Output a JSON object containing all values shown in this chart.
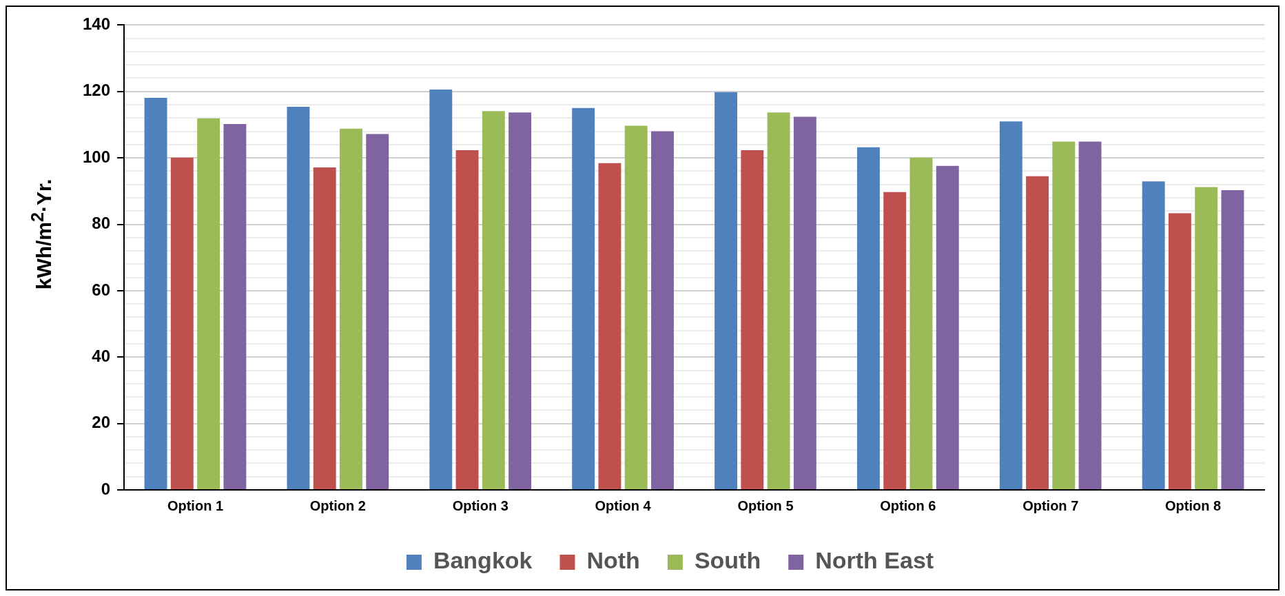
{
  "chart_data": {
    "type": "bar",
    "ylabel": "kWh/m$^{2}$·Yr.",
    "categories": [
      "Option 1",
      "Option 2",
      "Option 3",
      "Option 4",
      "Option 5",
      "Option 6",
      "Option 7",
      "Option 8"
    ],
    "series": [
      {
        "name": "Bangkok",
        "color": "#4f81bd",
        "values": [
          118.1,
          115.4,
          120.6,
          115.0,
          119.8,
          103.2,
          111.0,
          92.9
        ]
      },
      {
        "name": "Noth",
        "color": "#c0504d",
        "values": [
          100.1,
          97.1,
          102.3,
          98.4,
          102.3,
          89.7,
          94.5,
          83.3
        ]
      },
      {
        "name": "South",
        "color": "#9bbb59",
        "values": [
          111.9,
          108.8,
          114.1,
          109.7,
          113.7,
          100.1,
          104.9,
          91.2
        ]
      },
      {
        "name": "North East",
        "color": "#8064a2",
        "values": [
          110.2,
          107.2,
          113.7,
          108.0,
          112.4,
          97.6,
          104.9,
          90.3
        ]
      }
    ],
    "ylim": [
      0,
      140
    ],
    "yticks": [
      0,
      {
        "value": 4,
        "label": null
      },
      {
        "value": 8,
        "label": null
      },
      {
        "value": 12,
        "label": null
      },
      {
        "value": 16,
        "label": null
      },
      20,
      {
        "value": 24,
        "label": null
      },
      {
        "value": 28,
        "label": null
      },
      {
        "value": 32,
        "label": null
      },
      {
        "value": 36,
        "label": null
      },
      40,
      {
        "value": 44,
        "label": null
      },
      {
        "value": 48,
        "label": null
      },
      {
        "value": 52,
        "label": null
      },
      {
        "value": 56,
        "label": null
      },
      60,
      {
        "value": 64,
        "label": null
      },
      {
        "value": 68,
        "label": null
      },
      {
        "value": 72,
        "label": null
      },
      {
        "value": 76,
        "label": null
      },
      80,
      {
        "value": 84,
        "label": null
      },
      {
        "value": 88,
        "label": null
      },
      {
        "value": 92,
        "label": null
      },
      {
        "value": 96,
        "label": null
      },
      100,
      {
        "value": 104,
        "label": null
      },
      {
        "value": 108,
        "label": null
      },
      {
        "value": 112,
        "label": null
      },
      {
        "value": 116,
        "label": null
      },
      120,
      {
        "value": 124,
        "label": null
      },
      {
        "value": 128,
        "label": null
      },
      {
        "value": 132,
        "label": null
      },
      {
        "value": 136,
        "label": null
      },
      140
    ],
    "grid": "y",
    "legend": "bottom"
  }
}
